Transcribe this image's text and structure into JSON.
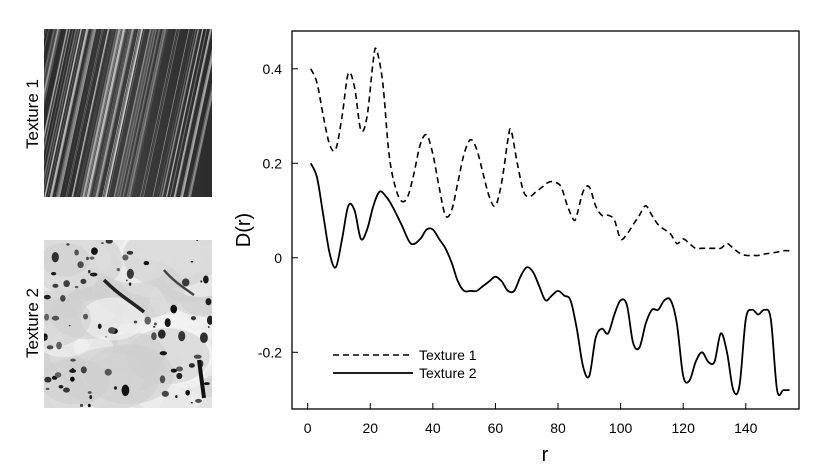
{
  "textures": [
    {
      "label": "Texture 1"
    },
    {
      "label": "Texture 2"
    }
  ],
  "chart_data": {
    "type": "line",
    "xlabel": "r",
    "ylabel": "D(r)",
    "xlim": [
      -5,
      157
    ],
    "ylim": [
      -0.32,
      0.48
    ],
    "xticks": [
      "0",
      "20",
      "40",
      "60",
      "80",
      "100",
      "120",
      "140"
    ],
    "yticks": [
      "0.4",
      "0.2",
      "0",
      "-0.2"
    ],
    "legend_position": "bottom-left",
    "series": [
      {
        "name": "Texture 1",
        "style": "dashed",
        "x": [
          1,
          3,
          5,
          7,
          9,
          11,
          13,
          15,
          17,
          19,
          21,
          22,
          24,
          26,
          28,
          30,
          32,
          34,
          36,
          38,
          40,
          42,
          44,
          46,
          48,
          50,
          52,
          54,
          56,
          58,
          60,
          62,
          64,
          65,
          67,
          69,
          71,
          73,
          75,
          77,
          79,
          81,
          83,
          85,
          86,
          88,
          90,
          92,
          94,
          96,
          98,
          100,
          102,
          104,
          106,
          108,
          110,
          112,
          114,
          116,
          118,
          120,
          122,
          124,
          126,
          128,
          130,
          132,
          134,
          136,
          138,
          140,
          142,
          144,
          146,
          148,
          150,
          152,
          154
        ],
        "y": [
          0.4,
          0.37,
          0.3,
          0.24,
          0.23,
          0.3,
          0.39,
          0.36,
          0.27,
          0.3,
          0.42,
          0.44,
          0.37,
          0.22,
          0.15,
          0.12,
          0.13,
          0.18,
          0.24,
          0.26,
          0.22,
          0.15,
          0.09,
          0.1,
          0.16,
          0.22,
          0.25,
          0.23,
          0.18,
          0.13,
          0.11,
          0.16,
          0.25,
          0.27,
          0.2,
          0.14,
          0.13,
          0.14,
          0.15,
          0.16,
          0.16,
          0.15,
          0.11,
          0.08,
          0.09,
          0.14,
          0.15,
          0.11,
          0.09,
          0.09,
          0.08,
          0.04,
          0.05,
          0.07,
          0.09,
          0.11,
          0.09,
          0.07,
          0.06,
          0.05,
          0.03,
          0.04,
          0.03,
          0.02,
          0.02,
          0.02,
          0.02,
          0.02,
          0.03,
          0.02,
          0.01,
          0.005,
          0.005,
          0.005,
          0.008,
          0.01,
          0.012,
          0.015,
          0.015
        ]
      },
      {
        "name": "Texture 2",
        "style": "solid",
        "x": [
          1,
          3,
          5,
          7,
          9,
          11,
          13,
          15,
          17,
          19,
          21,
          23,
          25,
          27,
          30,
          33,
          36,
          38,
          40,
          42,
          44,
          46,
          48,
          50,
          52,
          54,
          56,
          58,
          60,
          62,
          64,
          66,
          68,
          70,
          72,
          74,
          76,
          78,
          80,
          82,
          84,
          86,
          88,
          90,
          92,
          94,
          96,
          98,
          100,
          102,
          104,
          106,
          108,
          110,
          112,
          114,
          116,
          118,
          120,
          122,
          124,
          126,
          128,
          130,
          132,
          134,
          136,
          138,
          140,
          142,
          144,
          146,
          148,
          150,
          152,
          154
        ],
        "y": [
          0.2,
          0.17,
          0.09,
          0.01,
          -0.02,
          0.04,
          0.11,
          0.1,
          0.04,
          0.06,
          0.11,
          0.14,
          0.13,
          0.11,
          0.07,
          0.03,
          0.04,
          0.06,
          0.06,
          0.04,
          0.02,
          -0.01,
          -0.05,
          -0.07,
          -0.07,
          -0.07,
          -0.06,
          -0.05,
          -0.04,
          -0.05,
          -0.07,
          -0.07,
          -0.04,
          -0.02,
          -0.03,
          -0.06,
          -0.09,
          -0.08,
          -0.07,
          -0.08,
          -0.09,
          -0.15,
          -0.23,
          -0.25,
          -0.17,
          -0.15,
          -0.16,
          -0.12,
          -0.09,
          -0.1,
          -0.18,
          -0.19,
          -0.14,
          -0.11,
          -0.11,
          -0.09,
          -0.09,
          -0.14,
          -0.25,
          -0.26,
          -0.22,
          -0.2,
          -0.22,
          -0.22,
          -0.16,
          -0.2,
          -0.28,
          -0.27,
          -0.13,
          -0.11,
          -0.12,
          -0.11,
          -0.13,
          -0.28,
          -0.28,
          -0.28
        ]
      }
    ]
  }
}
